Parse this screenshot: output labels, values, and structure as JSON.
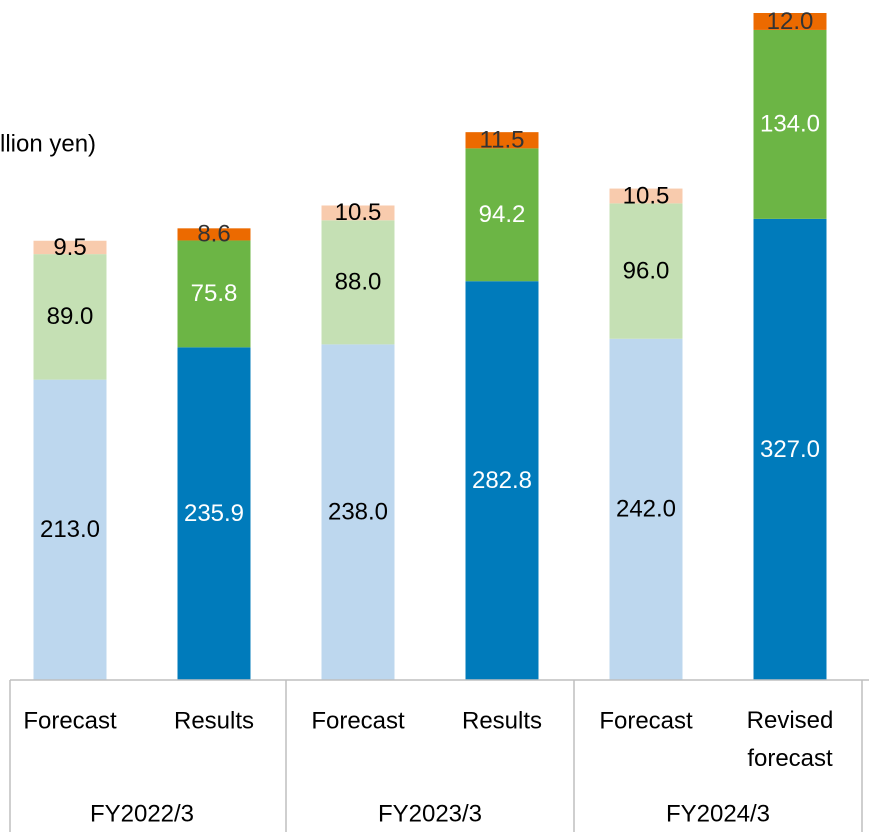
{
  "chart_data": {
    "type": "stacked_bar",
    "unit_label": "llion yen)",
    "categories": [
      "Forecast",
      "Results",
      "Forecast",
      "Results",
      "Forecast",
      "Revised forecast"
    ],
    "groups": [
      {
        "label": "FY2022/3",
        "span": 2
      },
      {
        "label": "FY2023/3",
        "span": 2
      },
      {
        "label": "FY2024/3",
        "span": 2
      }
    ],
    "series": [
      {
        "values": [
          213.0,
          235.9,
          238.0,
          282.8,
          242.0,
          327.0
        ],
        "value_labels": [
          "213.0",
          "235.9",
          "238.0",
          "282.8",
          "242.0",
          "327.0"
        ],
        "colors": [
          "#bdd7ee",
          "#007bbb",
          "#bdd7ee",
          "#007bbb",
          "#bdd7ee",
          "#007bbb"
        ],
        "label_colors": [
          "#000000",
          "#ffffff",
          "#000000",
          "#ffffff",
          "#000000",
          "#ffffff"
        ]
      },
      {
        "values": [
          89.0,
          75.8,
          88.0,
          94.2,
          96.0,
          134.0
        ],
        "value_labels": [
          "89.0",
          "75.8",
          "88.0",
          "94.2",
          "96.0",
          "134.0"
        ],
        "colors": [
          "#c5e0b4",
          "#6cb545",
          "#c5e0b4",
          "#6cb545",
          "#c5e0b4",
          "#6cb545"
        ],
        "label_colors": [
          "#000000",
          "#ffffff",
          "#000000",
          "#ffffff",
          "#000000",
          "#ffffff"
        ]
      },
      {
        "values": [
          9.5,
          8.6,
          10.5,
          11.5,
          10.5,
          12.0
        ],
        "value_labels": [
          "9.5",
          "8.6",
          "10.5",
          "11.5",
          "10.5",
          "12.0"
        ],
        "colors": [
          "#f8cbad",
          "#ec6a00",
          "#f8cbad",
          "#ec6a00",
          "#f8cbad",
          "#ec6a00"
        ],
        "label_colors": [
          "#000000",
          "#333333",
          "#000000",
          "#333333",
          "#000000",
          "#333333"
        ]
      }
    ]
  }
}
